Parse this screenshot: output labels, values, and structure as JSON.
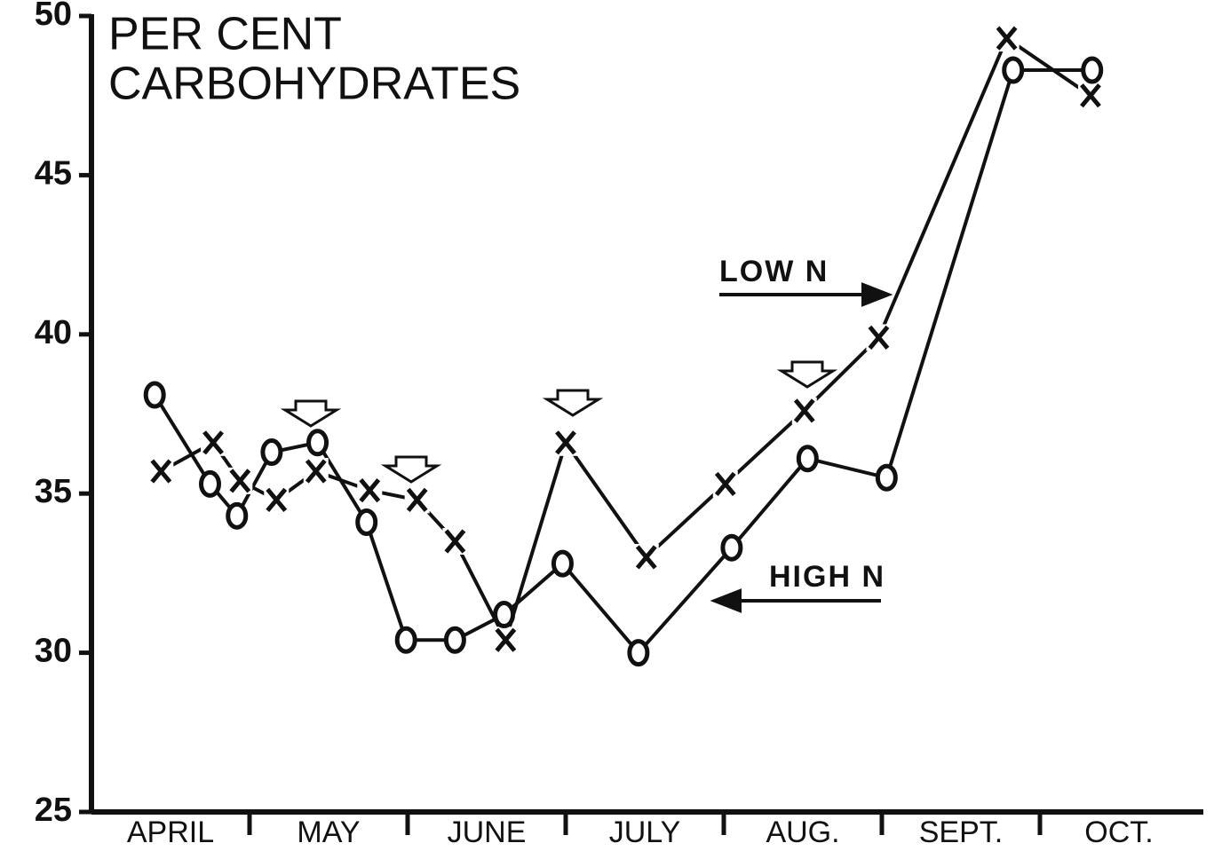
{
  "chart_data": {
    "type": "line",
    "title": [
      "PER CENT",
      "CARBOHYDRATES"
    ],
    "categories": [
      "APRIL",
      "MAY",
      "JUNE",
      "JULY",
      "AUG.",
      "SEPT.",
      "OCT."
    ],
    "xlim": [
      0,
      7
    ],
    "ylim": [
      25,
      50
    ],
    "yticks": [
      25,
      30,
      35,
      40,
      45,
      50
    ],
    "series": [
      {
        "name": "LOW N",
        "marker": "x",
        "color": "#111",
        "x": [
          0.44,
          0.77,
          0.94,
          1.17,
          1.42,
          1.76,
          2.06,
          2.3,
          2.62,
          3.0,
          3.51,
          4.01,
          4.51,
          4.98,
          5.79,
          6.32
        ],
        "values": [
          35.7,
          36.6,
          35.4,
          34.8,
          35.7,
          35.1,
          34.8,
          33.5,
          30.4,
          36.6,
          33.0,
          35.3,
          37.6,
          39.9,
          49.3,
          47.5
        ]
      },
      {
        "name": "HIGH N",
        "marker": "o",
        "color": "#111",
        "x": [
          0.4,
          0.75,
          0.92,
          1.14,
          1.43,
          1.74,
          1.99,
          2.3,
          2.61,
          2.98,
          3.46,
          4.05,
          4.53,
          5.03,
          5.83,
          6.33
        ],
        "values": [
          38.1,
          35.3,
          34.3,
          36.3,
          36.6,
          34.1,
          30.4,
          30.4,
          31.2,
          32.8,
          30.0,
          33.3,
          36.1,
          35.5,
          48.3,
          48.3
        ]
      }
    ]
  }
}
